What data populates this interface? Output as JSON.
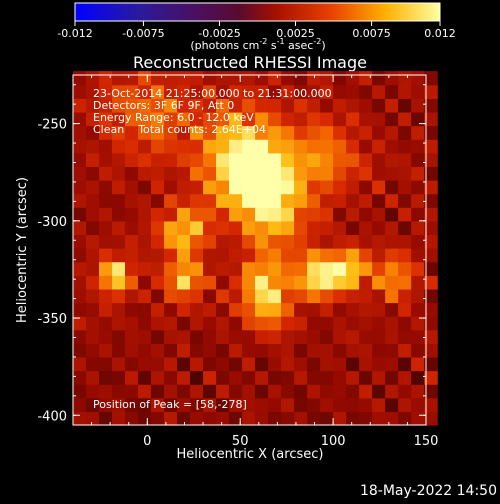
{
  "title": "Reconstructed RHESSI Image",
  "colorbar": {
    "ticks": [
      "-0.012",
      "-0.0075",
      "-0.0025",
      "0.0025",
      "0.0075",
      "0.012"
    ],
    "units_label": "(photons cm",
    "units_sup1": "-2",
    "units_mid": " s",
    "units_sup2": "-1",
    "units_tail": " asec",
    "units_sup3": "-2",
    "units_end": ")"
  },
  "annotations": {
    "time": "23-Oct-2014 21:25:00.000 to 21:31:00.000",
    "detectors": "Detectors: 3F 6F 9F, Att 0",
    "energy": "Energy Range: 6.0 - 12.0 keV",
    "clean": "Clean    Total counts: 2.64E+04",
    "peak": "Position of Peak = [58,-278]"
  },
  "axes": {
    "xlabel": "Heliocentric X (arcsec)",
    "ylabel": "Heliocentric Y (arcsec)",
    "xticks": [
      "0",
      "50",
      "100",
      "150"
    ],
    "yticks": [
      "-250",
      "-300",
      "-350",
      "-400"
    ],
    "xrange": [
      -40,
      150
    ],
    "yrange": [
      -405,
      -225
    ]
  },
  "footer_date": "18-May-2022 14:50",
  "colors": {
    "background": "#000000",
    "frame": "#ffffff"
  },
  "image_sources": [
    {
      "x": 58,
      "y": -278,
      "amp": 1.0,
      "s": 14
    },
    {
      "x": 50,
      "y": -262,
      "amp": 0.55,
      "s": 18
    },
    {
      "x": 20,
      "y": -305,
      "amp": 0.75,
      "s": 9
    },
    {
      "x": 70,
      "y": -300,
      "amp": 0.55,
      "s": 12
    },
    {
      "x": -17,
      "y": -328,
      "amp": 0.85,
      "s": 7
    },
    {
      "x": 20,
      "y": -330,
      "amp": 0.8,
      "s": 7
    },
    {
      "x": 62,
      "y": -330,
      "amp": 0.65,
      "s": 9
    },
    {
      "x": 92,
      "y": -328,
      "amp": 0.9,
      "s": 8
    },
    {
      "x": 108,
      "y": -325,
      "amp": 0.85,
      "s": 7
    },
    {
      "x": 132,
      "y": -328,
      "amp": 0.6,
      "s": 8
    },
    {
      "x": 65,
      "y": -345,
      "amp": 0.6,
      "s": 9
    },
    {
      "x": 0,
      "y": -245,
      "amp": 0.45,
      "s": 16
    },
    {
      "x": 95,
      "y": -268,
      "amp": 0.5,
      "s": 14
    }
  ]
}
